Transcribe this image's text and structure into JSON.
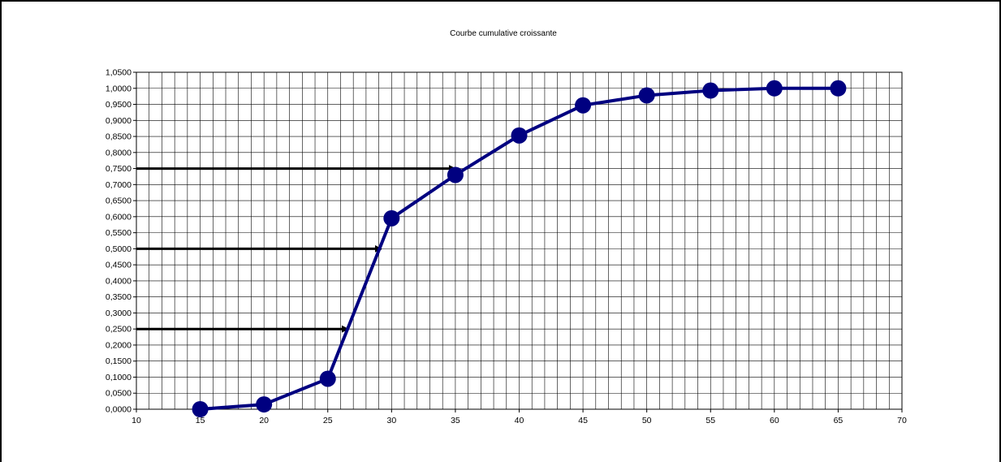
{
  "chart_data": {
    "type": "line",
    "title": "Courbe cumulative croissante",
    "xlabel": "",
    "ylabel": "",
    "xlim": [
      10,
      70
    ],
    "ylim": [
      0,
      1.05
    ],
    "x_ticks": [
      "10",
      "15",
      "20",
      "25",
      "30",
      "35",
      "40",
      "45",
      "50",
      "55",
      "60",
      "65",
      "70"
    ],
    "y_ticks": [
      "0,0000",
      "0,0500",
      "0,1000",
      "0,1500",
      "0,2000",
      "0,2500",
      "0,3000",
      "0,3500",
      "0,4000",
      "0,4500",
      "0,5000",
      "0,5500",
      "0,6000",
      "0,6500",
      "0,7000",
      "0,7500",
      "0,8000",
      "0,8500",
      "0,9000",
      "0,9500",
      "1,0000",
      "1,0500"
    ],
    "grid": true,
    "legend": "none",
    "series": [
      {
        "color": "#000080",
        "x": [
          15,
          20,
          25,
          30,
          35,
          40,
          45,
          50,
          55,
          60,
          65
        ],
        "y": [
          0.0,
          0.015,
          0.095,
          0.595,
          0.73,
          0.853,
          0.947,
          0.978,
          0.993,
          1.0,
          1.0
        ]
      }
    ],
    "annotations": [
      {
        "type": "arrow",
        "from": [
          10,
          0.75
        ],
        "to": [
          35,
          0.75
        ]
      },
      {
        "type": "arrow",
        "from": [
          10,
          0.5
        ],
        "to": [
          29.2,
          0.5
        ]
      },
      {
        "type": "arrow",
        "from": [
          10,
          0.25
        ],
        "to": [
          26.6,
          0.25
        ]
      }
    ]
  }
}
